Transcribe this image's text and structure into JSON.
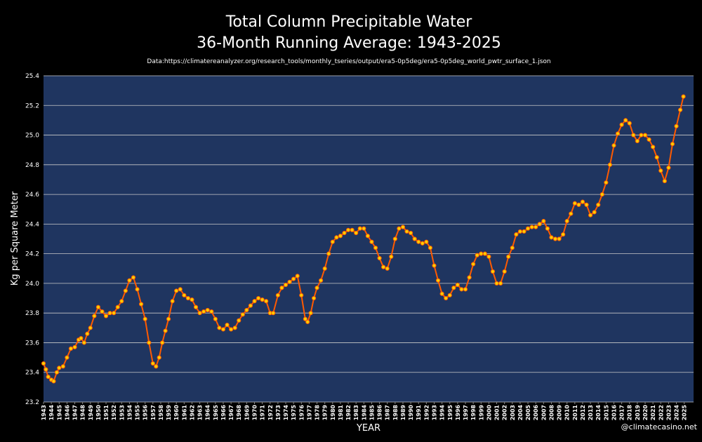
{
  "chart_data": {
    "type": "scatter",
    "title": "Total Column Precipitable Water",
    "subtitle": "36-Month Running Average: 1943-2025",
    "source": "Data:https://climatereanalyzer.org/research_tools/monthly_tseries/output/era5-0p5deg/era5-0p5deg_world_pwtr_surface_1.json",
    "xlabel": "YEAR",
    "ylabel": "Kg per Square Meter",
    "watermark": "@climatecasino.net",
    "color": "#ffd000",
    "edge_color": "#ff5a00",
    "grid": true,
    "x": [
      1943.0,
      1943.3,
      1943.6,
      1944.0,
      1944.3,
      1944.7,
      1945.0,
      1945.5,
      1946.0,
      1946.5,
      1947.0,
      1947.5,
      1947.8,
      1948.2,
      1948.6,
      1949.0,
      1949.5,
      1950.0,
      1950.5,
      1951.0,
      1951.5,
      1952.0,
      1952.5,
      1953.0,
      1953.5,
      1954.0,
      1954.5,
      1955.0,
      1955.5,
      1956.0,
      1956.5,
      1957.0,
      1957.4,
      1957.8,
      1958.2,
      1958.6,
      1959.0,
      1959.5,
      1960.0,
      1960.5,
      1961.0,
      1961.5,
      1962.0,
      1962.5,
      1963.0,
      1963.5,
      1964.0,
      1964.5,
      1965.0,
      1965.5,
      1966.0,
      1966.5,
      1967.0,
      1967.5,
      1968.0,
      1968.5,
      1969.0,
      1969.5,
      1970.0,
      1970.5,
      1971.0,
      1971.5,
      1972.0,
      1972.4,
      1973.0,
      1973.5,
      1974.0,
      1974.5,
      1975.0,
      1975.5,
      1976.0,
      1976.5,
      1976.8,
      1977.2,
      1977.6,
      1978.0,
      1978.5,
      1979.0,
      1979.5,
      1980.0,
      1980.5,
      1981.0,
      1981.5,
      1982.0,
      1982.5,
      1983.0,
      1983.5,
      1984.0,
      1984.5,
      1985.0,
      1985.5,
      1986.0,
      1986.5,
      1987.0,
      1987.5,
      1988.0,
      1988.5,
      1989.0,
      1989.5,
      1990.0,
      1990.5,
      1991.0,
      1991.5,
      1992.0,
      1992.5,
      1993.0,
      1993.5,
      1994.0,
      1994.5,
      1995.0,
      1995.5,
      1996.0,
      1996.5,
      1997.0,
      1997.5,
      1998.0,
      1998.5,
      1999.0,
      1999.5,
      2000.0,
      2000.5,
      2001.0,
      2001.5,
      2002.0,
      2002.5,
      2003.0,
      2003.5,
      2004.0,
      2004.5,
      2005.0,
      2005.5,
      2006.0,
      2006.5,
      2007.0,
      2007.5,
      2008.0,
      2008.5,
      2009.0,
      2009.5,
      2010.0,
      2010.5,
      2011.0,
      2011.5,
      2012.0,
      2012.5,
      2013.0,
      2013.5,
      2014.0,
      2014.5,
      2015.0,
      2015.5,
      2016.0,
      2016.5,
      2017.0,
      2017.5,
      2018.0,
      2018.5,
      2019.0,
      2019.5,
      2020.0,
      2020.5,
      2021.0,
      2021.5,
      2022.0,
      2022.5,
      2023.0,
      2023.5,
      2024.0,
      2024.5,
      2024.9
    ],
    "values": [
      23.46,
      23.42,
      23.37,
      23.35,
      23.34,
      23.4,
      23.43,
      23.44,
      23.5,
      23.56,
      23.57,
      23.62,
      23.63,
      23.6,
      23.66,
      23.7,
      23.78,
      23.84,
      23.81,
      23.78,
      23.8,
      23.8,
      23.84,
      23.88,
      23.95,
      24.02,
      24.04,
      23.96,
      23.86,
      23.76,
      23.6,
      23.46,
      23.44,
      23.5,
      23.6,
      23.68,
      23.76,
      23.88,
      23.95,
      23.96,
      23.92,
      23.9,
      23.89,
      23.84,
      23.8,
      23.81,
      23.82,
      23.81,
      23.76,
      23.7,
      23.69,
      23.72,
      23.69,
      23.7,
      23.75,
      23.79,
      23.82,
      23.85,
      23.88,
      23.9,
      23.89,
      23.88,
      23.8,
      23.8,
      23.92,
      23.97,
      23.99,
      24.01,
      24.03,
      24.05,
      23.92,
      23.76,
      23.74,
      23.8,
      23.9,
      23.97,
      24.02,
      24.1,
      24.2,
      24.28,
      24.31,
      24.32,
      24.34,
      24.36,
      24.36,
      24.34,
      24.37,
      24.37,
      24.32,
      24.28,
      24.24,
      24.17,
      24.11,
      24.1,
      24.18,
      24.3,
      24.37,
      24.38,
      24.35,
      24.34,
      24.3,
      24.28,
      24.27,
      24.28,
      24.24,
      24.12,
      24.02,
      23.93,
      23.9,
      23.92,
      23.97,
      23.99,
      23.96,
      23.96,
      24.04,
      24.13,
      24.19,
      24.2,
      24.2,
      24.18,
      24.08,
      24.0,
      24.0,
      24.08,
      24.18,
      24.24,
      24.33,
      24.35,
      24.35,
      24.37,
      24.38,
      24.38,
      24.4,
      24.42,
      24.37,
      24.31,
      24.3,
      24.3,
      24.33,
      24.42,
      24.47,
      24.54,
      24.53,
      24.55,
      24.53,
      24.46,
      24.48,
      24.53,
      24.6,
      24.68,
      24.8,
      24.93,
      25.01,
      25.07,
      25.1,
      25.08,
      25.0,
      24.96,
      25.0,
      25.0,
      24.97,
      24.92,
      24.85,
      24.76,
      24.69,
      24.78,
      24.94,
      25.06,
      25.17,
      25.26
    ],
    "xlim": [
      1943,
      2026.2
    ],
    "xticks": [
      1943,
      1944,
      1945,
      1946,
      1947,
      1948,
      1949,
      1950,
      1951,
      1952,
      1953,
      1954,
      1955,
      1956,
      1957,
      1958,
      1959,
      1960,
      1961,
      1962,
      1963,
      1964,
      1965,
      1966,
      1967,
      1968,
      1969,
      1970,
      1971,
      1972,
      1973,
      1974,
      1975,
      1976,
      1977,
      1978,
      1979,
      1980,
      1981,
      1982,
      1983,
      1984,
      1985,
      1986,
      1987,
      1988,
      1989,
      1990,
      1991,
      1992,
      1993,
      1994,
      1995,
      1996,
      1997,
      1998,
      1999,
      2000,
      2001,
      2002,
      2003,
      2004,
      2005,
      2006,
      2007,
      2008,
      2009,
      2010,
      2011,
      2012,
      2013,
      2014,
      2015,
      2016,
      2017,
      2018,
      2019,
      2020,
      2021,
      2022,
      2023,
      2024,
      2025
    ],
    "ylim": [
      23.2,
      25.4
    ],
    "yticks": [
      23.2,
      23.4,
      23.6,
      23.8,
      {
        "value": 24,
        "label": "24.0"
      },
      24.2,
      24.4,
      24.6,
      24.8,
      {
        "value": 25,
        "label": "25.0"
      },
      25.2,
      25.4
    ]
  }
}
